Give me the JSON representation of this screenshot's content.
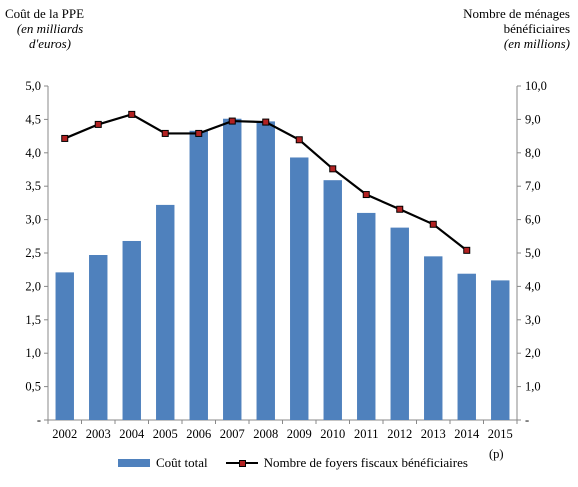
{
  "chart_data": {
    "type": "bar+line",
    "categories": [
      "2002",
      "2003",
      "2004",
      "2005",
      "2006",
      "2007",
      "2008",
      "2009",
      "2010",
      "2011",
      "2012",
      "2013",
      "2014",
      "2015"
    ],
    "category_note": "(p)",
    "series": [
      {
        "name": "Coût total",
        "type": "bar",
        "axis": "left",
        "values": [
          2.21,
          2.47,
          2.68,
          3.22,
          4.33,
          4.51,
          4.47,
          3.93,
          3.59,
          3.1,
          2.88,
          2.45,
          2.19,
          2.09
        ]
      },
      {
        "name": "Nombre de foyers fiscaux bénéficiaires",
        "type": "line",
        "axis": "right",
        "values": [
          8.43,
          8.85,
          9.15,
          8.58,
          8.58,
          8.95,
          8.92,
          8.39,
          7.52,
          6.75,
          6.31,
          5.86,
          5.08,
          null
        ]
      }
    ],
    "left_axis": {
      "title": "Coût de la PPE",
      "unit": "(en milliards d'euros)",
      "range": [
        0,
        5
      ],
      "ticks": [
        "-",
        "0,5",
        "1,0",
        "1,5",
        "2,0",
        "2,5",
        "3,0",
        "3,5",
        "4,0",
        "4,5",
        "5,0"
      ]
    },
    "right_axis": {
      "title": "Nombre de ménages bénéficiaires",
      "unit": "(en millions)",
      "range": [
        0,
        10
      ],
      "ticks": [
        "-",
        "1,0",
        "2,0",
        "3,0",
        "4,0",
        "5,0",
        "6,0",
        "7,0",
        "8,0",
        "9,0",
        "10,0"
      ]
    },
    "grid": false,
    "legend_position": "bottom",
    "colors": {
      "bar": "#4f81bd",
      "line": "#000000",
      "marker": "#b22222"
    }
  }
}
